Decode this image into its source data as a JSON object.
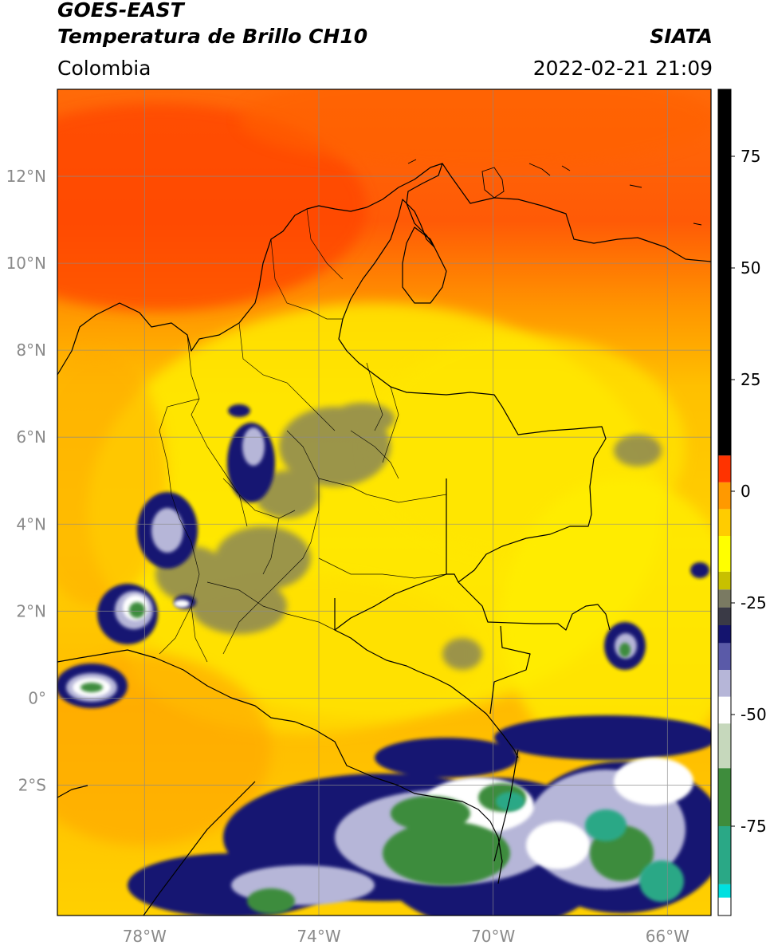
{
  "header": {
    "satellite": "GOES-EAST",
    "product": "Temperatura de Brillo CH10",
    "region": "Colombia",
    "provider": "SIATA",
    "datetime": "2022-02-21 21:09"
  },
  "map": {
    "lat_ticks": [
      {
        "value": 12,
        "label": "12°N"
      },
      {
        "value": 10,
        "label": "10°N"
      },
      {
        "value": 8,
        "label": "8°N"
      },
      {
        "value": 6,
        "label": "6°N"
      },
      {
        "value": 4,
        "label": "4°N"
      },
      {
        "value": 2,
        "label": "2°N"
      },
      {
        "value": 0,
        "label": "0°"
      },
      {
        "value": -2,
        "label": "2°S"
      }
    ],
    "lon_ticks": [
      {
        "value": -78,
        "label": "78°W"
      },
      {
        "value": -74,
        "label": "74°W"
      },
      {
        "value": -70,
        "label": "70°W"
      },
      {
        "value": -66,
        "label": "66°W"
      }
    ],
    "lon_range": [
      -80,
      -65
    ],
    "lat_range": [
      -5,
      14
    ],
    "gridlines": true
  },
  "colorbar": {
    "ticks": [
      {
        "value": 75,
        "label": "75"
      },
      {
        "value": 50,
        "label": "50"
      },
      {
        "value": 25,
        "label": "25"
      },
      {
        "value": 0,
        "label": "0"
      },
      {
        "value": -25,
        "label": "-25"
      },
      {
        "value": -50,
        "label": "-50"
      },
      {
        "value": -75,
        "label": "-75"
      }
    ],
    "range": [
      -95,
      90
    ],
    "stops": [
      {
        "from": -95,
        "to": -91,
        "color": "#ffffff"
      },
      {
        "from": -91,
        "to": -88,
        "color": "#00e0e0"
      },
      {
        "from": -88,
        "to": -75,
        "color": "#2aa886"
      },
      {
        "from": -75,
        "to": -62,
        "color": "#3e8c3c"
      },
      {
        "from": -62,
        "to": -52,
        "color": "#c6d8bc"
      },
      {
        "from": -52,
        "to": -46,
        "color": "#ffffff"
      },
      {
        "from": -46,
        "to": -40,
        "color": "#b6b6d8"
      },
      {
        "from": -40,
        "to": -34,
        "color": "#5a5aa8"
      },
      {
        "from": -34,
        "to": -30,
        "color": "#14146e"
      },
      {
        "from": -30,
        "to": -26,
        "color": "#3a3a46"
      },
      {
        "from": -26,
        "to": -22,
        "color": "#7a7a62"
      },
      {
        "from": -22,
        "to": -18,
        "color": "#c8c000"
      },
      {
        "from": -18,
        "to": -10,
        "color": "#ffff00"
      },
      {
        "from": -10,
        "to": -4,
        "color": "#ffcc00"
      },
      {
        "from": -4,
        "to": 2,
        "color": "#ff9900"
      },
      {
        "from": 2,
        "to": 8,
        "color": "#ff3300"
      },
      {
        "from": 8,
        "to": 90,
        "color": "#000000"
      }
    ]
  },
  "colors": {
    "warm_sea": "#ff6a08",
    "land": "#ffd400",
    "cloud_dark": "#141472",
    "cloud_grey": "#7a7a62",
    "cold_green": "#3e8c3c",
    "coldest_teal": "#2aa886",
    "border": "#000000"
  }
}
